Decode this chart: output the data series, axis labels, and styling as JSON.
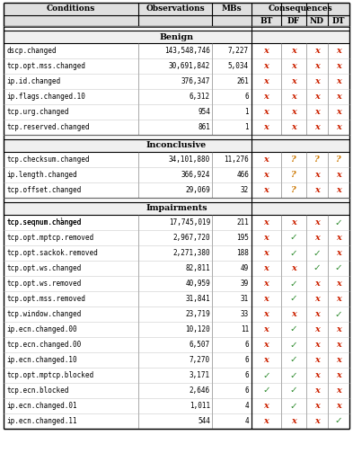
{
  "sections": [
    {
      "name": "Benign",
      "rows": [
        {
          "cond": "dscp.changed",
          "obs": "143,548,746",
          "mbs": "7,227",
          "bt": "X",
          "df": "X",
          "nd": "X",
          "dt": "X"
        },
        {
          "cond": "tcp.opt.mss.changed",
          "obs": "30,691,842",
          "mbs": "5,034",
          "bt": "X",
          "df": "X",
          "nd": "X",
          "dt": "X"
        },
        {
          "cond": "ip.id.changed",
          "obs": "376,347",
          "mbs": "261",
          "bt": "X",
          "df": "X",
          "nd": "X",
          "dt": "X"
        },
        {
          "cond": "ip.flags.changed.10",
          "obs": "6,312",
          "mbs": "6",
          "bt": "X",
          "df": "X",
          "nd": "X",
          "dt": "X"
        },
        {
          "cond": "tcp.urg.changed",
          "obs": "954",
          "mbs": "1",
          "bt": "X",
          "df": "X",
          "nd": "X",
          "dt": "X"
        },
        {
          "cond": "tcp.reserved.changed",
          "obs": "861",
          "mbs": "1",
          "bt": "X",
          "df": "X",
          "nd": "X",
          "dt": "X"
        }
      ]
    },
    {
      "name": "Inconclusive",
      "rows": [
        {
          "cond": "tcp.checksum.changed",
          "obs": "34,101,880",
          "mbs": "11,276",
          "bt": "X",
          "df": "Q",
          "nd": "Q",
          "dt": "Q"
        },
        {
          "cond": "ip.length.changed",
          "obs": "366,924",
          "mbs": "466",
          "bt": "X",
          "df": "Q",
          "nd": "X",
          "dt": "X"
        },
        {
          "cond": "tcp.offset.changed",
          "obs": "29,069",
          "mbs": "32",
          "bt": "X",
          "df": "Q",
          "nd": "X",
          "dt": "X"
        }
      ]
    },
    {
      "name": "Impairments",
      "rows": [
        {
          "cond": "tcp.seqnum.changed",
          "sup": true,
          "obs": "17,745,019",
          "mbs": "211",
          "bt": "X",
          "df": "X",
          "nd": "X",
          "dt": "C"
        },
        {
          "cond": "tcp.opt.mptcp.removed",
          "sup": false,
          "obs": "2,967,720",
          "mbs": "195",
          "bt": "X",
          "df": "C",
          "nd": "X",
          "dt": "X"
        },
        {
          "cond": "tcp.opt.sackok.removed",
          "sup": false,
          "obs": "2,271,380",
          "mbs": "188",
          "bt": "X",
          "df": "C",
          "nd": "C",
          "dt": "X"
        },
        {
          "cond": "tcp.opt.ws.changed",
          "sup": false,
          "obs": "82,811",
          "mbs": "49",
          "bt": "X",
          "df": "X",
          "nd": "C",
          "dt": "C"
        },
        {
          "cond": "tcp.opt.ws.removed",
          "sup": false,
          "obs": "40,959",
          "mbs": "39",
          "bt": "X",
          "df": "C",
          "nd": "X",
          "dt": "X"
        },
        {
          "cond": "tcp.opt.mss.removed",
          "sup": false,
          "obs": "31,841",
          "mbs": "31",
          "bt": "X",
          "df": "C",
          "nd": "X",
          "dt": "X"
        },
        {
          "cond": "tcp.window.changed",
          "sup": false,
          "obs": "23,719",
          "mbs": "33",
          "bt": "X",
          "df": "X",
          "nd": "X",
          "dt": "C"
        },
        {
          "cond": "ip.ecn.changed.00",
          "sup": false,
          "obs": "10,120",
          "mbs": "11",
          "bt": "X",
          "df": "C",
          "nd": "X",
          "dt": "X"
        },
        {
          "cond": "tcp.ecn.changed.00",
          "sup": false,
          "obs": "6,507",
          "mbs": "6",
          "bt": "X",
          "df": "C",
          "nd": "X",
          "dt": "X"
        },
        {
          "cond": "ip.ecn.changed.10",
          "sup": false,
          "obs": "7,270",
          "mbs": "6",
          "bt": "X",
          "df": "C",
          "nd": "X",
          "dt": "X"
        },
        {
          "cond": "tcp.opt.mptcp.blocked",
          "sup": false,
          "obs": "3,171",
          "mbs": "6",
          "bt": "C",
          "df": "C",
          "nd": "X",
          "dt": "X"
        },
        {
          "cond": "tcp.ecn.blocked",
          "sup": false,
          "obs": "2,646",
          "mbs": "6",
          "bt": "C",
          "df": "C",
          "nd": "X",
          "dt": "X"
        },
        {
          "cond": "ip.ecn.changed.01",
          "sup": false,
          "obs": "1,011",
          "mbs": "4",
          "bt": "X",
          "df": "C",
          "nd": "X",
          "dt": "X"
        },
        {
          "cond": "ip.ecn.changed.11",
          "sup": false,
          "obs": "544",
          "mbs": "4",
          "bt": "X",
          "df": "X",
          "nd": "X",
          "dt": "C"
        }
      ]
    }
  ],
  "cross_color": "#cc2200",
  "check_color": "#2e8b2e",
  "question_color": "#cc7700",
  "bg_color": "#ffffff",
  "line_color": "#000000",
  "header_bg": "#e0e0e0",
  "section_header_bg": "#f0f0f0",
  "gap_bg": "#f8f8f8"
}
